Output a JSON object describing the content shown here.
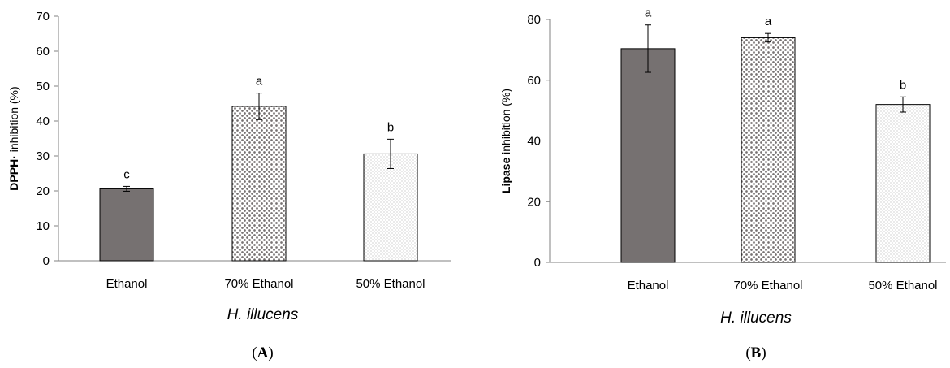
{
  "chart_data": [
    {
      "type": "bar",
      "panel_label": "A",
      "categories": [
        "Ethanol",
        "70% Ethanol",
        "50% Ethanol"
      ],
      "values": [
        20.6,
        44.2,
        30.6
      ],
      "errors": [
        0.7,
        3.8,
        4.2
      ],
      "significance": [
        "c",
        "a",
        "b"
      ],
      "fills": [
        "solid-dark",
        "dense-dots",
        "sparse-dots"
      ],
      "xlabel": "H. illucens",
      "ylabel_bold": "DPPH·",
      "ylabel_rest": " inhibition (%)",
      "ylim": [
        0,
        70
      ],
      "yticks": [
        0,
        10,
        20,
        30,
        40,
        50,
        60,
        70
      ]
    },
    {
      "type": "bar",
      "panel_label": "B",
      "categories": [
        "Ethanol",
        "70% Ethanol",
        "50% Ethanol"
      ],
      "values": [
        70.4,
        74.0,
        52.0
      ],
      "errors": [
        7.8,
        1.4,
        2.5
      ],
      "significance": [
        "a",
        "a",
        "b"
      ],
      "fills": [
        "solid-dark",
        "dense-dots",
        "sparse-dots"
      ],
      "xlabel": "H. illucens",
      "ylabel_bold": "Lipase",
      "ylabel_rest": " inhibition (%)",
      "ylim": [
        0,
        80
      ],
      "yticks": [
        0,
        20,
        40,
        60,
        80
      ]
    }
  ],
  "colors": {
    "solid_bar": "#767171",
    "dot_color": "#767171",
    "axis": "#808080"
  }
}
